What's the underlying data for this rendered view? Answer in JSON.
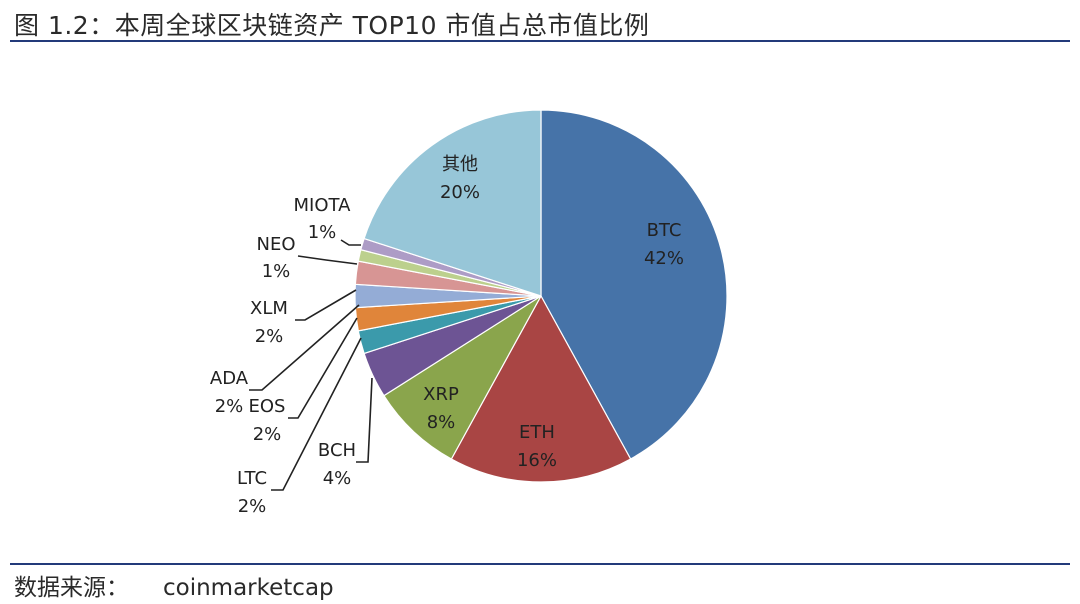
{
  "figure": {
    "title": "图 1.2：本周全球区块链资产 TOP10 市值占总市值比例",
    "source_label": "数据来源：",
    "source_value": "coinmarketcap"
  },
  "chart_data": {
    "type": "pie",
    "title": "本周全球区块链资产 TOP10 市值占总市值比例",
    "start": "12 o'clock",
    "direction": "clockwise",
    "slices": [
      {
        "name": "BTC",
        "value": 42,
        "pct_label": "42%",
        "color": "#4673a8"
      },
      {
        "name": "ETH",
        "value": 16,
        "pct_label": "16%",
        "color": "#a94544"
      },
      {
        "name": "XRP",
        "value": 8,
        "pct_label": "8%",
        "color": "#8aa54c"
      },
      {
        "name": "BCH",
        "value": 4,
        "pct_label": "4%",
        "color": "#6d5494"
      },
      {
        "name": "LTC",
        "value": 2,
        "pct_label": "2%",
        "color": "#3b9aab"
      },
      {
        "name": "EOS",
        "value": 2,
        "pct_label": "2%",
        "color": "#e0853a"
      },
      {
        "name": "ADA",
        "value": 2,
        "pct_label": "2%",
        "color": "#94acd6"
      },
      {
        "name": "XLM",
        "value": 2,
        "pct_label": "2%",
        "color": "#d79594"
      },
      {
        "name": "NEO",
        "value": 1,
        "pct_label": "1%",
        "color": "#bcd08d"
      },
      {
        "name": "MIOTA",
        "value": 1,
        "pct_label": "1%",
        "color": "#ad9cc6"
      },
      {
        "name": "其他",
        "value": 20,
        "pct_label": "20%",
        "color": "#97c6d8"
      }
    ]
  }
}
